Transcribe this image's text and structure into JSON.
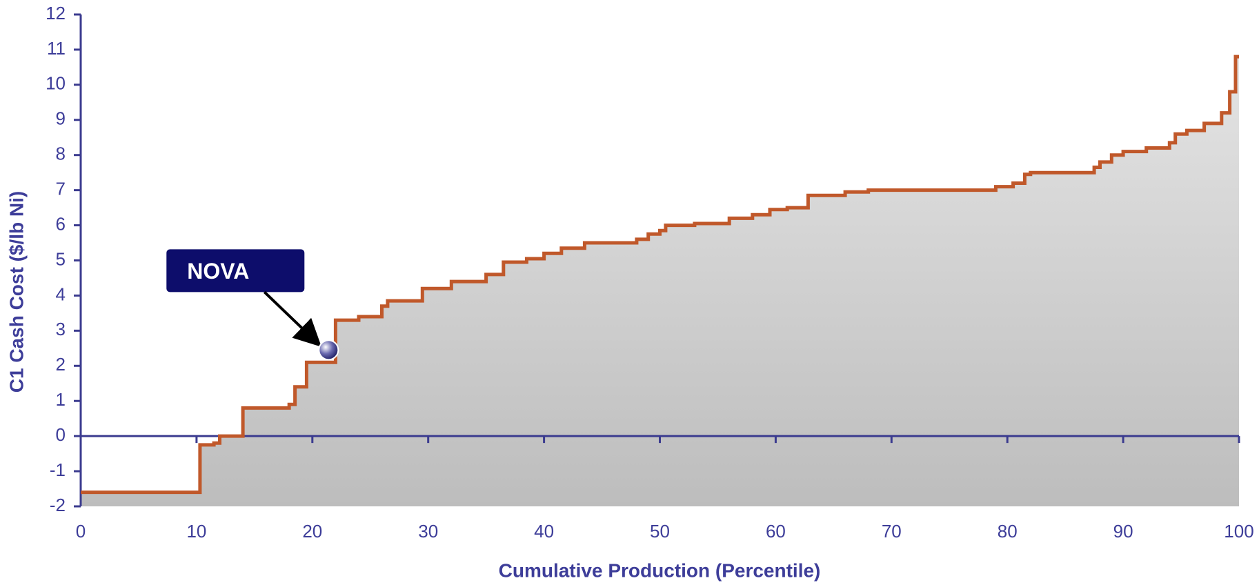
{
  "chart_data": {
    "type": "line",
    "step": true,
    "x_label": "Cumulative Production (Percentile)",
    "y_label": "C1 Cash Cost ($/lb Ni)",
    "xlim": [
      0,
      100
    ],
    "ylim": [
      -2,
      12
    ],
    "xticks": [
      0,
      10,
      20,
      30,
      40,
      50,
      60,
      70,
      80,
      90,
      100
    ],
    "yticks": [
      -2,
      -1,
      0,
      1,
      2,
      3,
      4,
      5,
      6,
      7,
      8,
      9,
      10,
      11,
      12
    ],
    "series": [
      {
        "color": "#c0582a",
        "x": [
          0,
          10.3,
          10.3,
          11.5,
          11.5,
          12,
          12,
          14,
          14,
          18,
          18,
          18.5,
          18.5,
          19.5,
          19.5,
          22,
          22,
          24,
          24,
          26,
          26,
          26.5,
          26.5,
          29.5,
          29.5,
          32,
          32,
          35,
          35,
          36.5,
          36.5,
          38.5,
          38.5,
          40,
          40,
          41.5,
          41.5,
          43.5,
          43.5,
          48,
          48,
          49,
          49,
          50,
          50,
          50.5,
          50.5,
          53,
          53,
          56,
          56,
          58,
          58,
          59.5,
          59.5,
          61,
          61,
          62.8,
          62.8,
          66,
          66,
          68,
          68,
          79,
          79,
          80.5,
          80.5,
          81.5,
          81.5,
          82,
          82,
          87.5,
          87.5,
          88,
          88,
          89,
          89,
          90,
          90,
          92,
          92,
          94,
          94,
          94.5,
          94.5,
          95.5,
          95.5,
          97,
          97,
          98.5,
          98.5,
          99.2,
          99.2,
          99.7,
          99.7,
          100
        ],
        "values": [
          -1.6,
          -1.6,
          -0.25,
          -0.25,
          -0.2,
          -0.2,
          0,
          0,
          0.8,
          0.8,
          0.9,
          0.9,
          1.4,
          1.4,
          2.1,
          2.1,
          3.3,
          3.3,
          3.4,
          3.4,
          3.7,
          3.7,
          3.85,
          3.85,
          4.2,
          4.2,
          4.4,
          4.4,
          4.6,
          4.6,
          4.95,
          4.95,
          5.05,
          5.05,
          5.2,
          5.2,
          5.35,
          5.35,
          5.5,
          5.5,
          5.6,
          5.6,
          5.75,
          5.75,
          5.85,
          5.85,
          6.0,
          6.0,
          6.05,
          6.05,
          6.2,
          6.2,
          6.3,
          6.3,
          6.45,
          6.45,
          6.5,
          6.5,
          6.85,
          6.85,
          6.95,
          6.95,
          7.0,
          7.0,
          7.1,
          7.1,
          7.2,
          7.2,
          7.45,
          7.45,
          7.5,
          7.5,
          7.65,
          7.65,
          7.8,
          7.8,
          8.0,
          8.0,
          8.1,
          8.1,
          8.2,
          8.2,
          8.35,
          8.35,
          8.6,
          8.6,
          8.7,
          8.7,
          8.9,
          8.9,
          9.2,
          9.2,
          9.8,
          9.8,
          10.8,
          10.8
        ]
      }
    ],
    "annotations": [
      {
        "text": "NOVA",
        "x": 21.4,
        "y": 2.45
      }
    ]
  }
}
